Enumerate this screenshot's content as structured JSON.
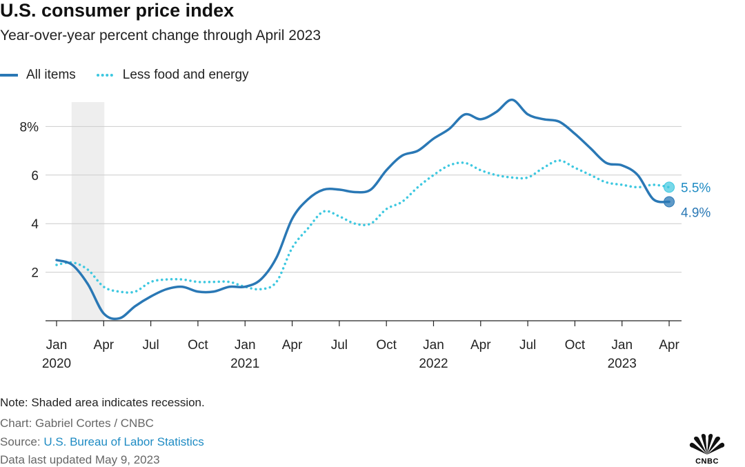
{
  "header": {
    "title": "U.S. consumer price index",
    "subtitle": "Year-over-year percent change through April 2023"
  },
  "footer": {
    "note": "Note: Shaded area indicates recession.",
    "credit": "Chart: Gabriel Cortes / CNBC",
    "source_prefix": "Source: ",
    "source_link": "U.S. Bureau of Labor Statistics",
    "updated": "Data last updated May 9, 2023",
    "logo_text": "CNBC"
  },
  "colors": {
    "all_items": "#2a78b5",
    "core": "#3ec8e0",
    "recession": "#eeeeee",
    "grid": "#cccccc",
    "link": "#1e8bc3"
  },
  "chart_data": {
    "type": "line",
    "title": "U.S. consumer price index",
    "subtitle": "Year-over-year percent change through April 2023",
    "xlabel": "",
    "ylabel": "",
    "ylim": [
      0,
      9
    ],
    "y_ticks": [
      {
        "value": 2,
        "label": "2"
      },
      {
        "value": 4,
        "label": "4"
      },
      {
        "value": 6,
        "label": "6"
      },
      {
        "value": 8,
        "label": "8%"
      }
    ],
    "x_ticks": [
      {
        "month": 0,
        "label": "Jan",
        "year": "2020"
      },
      {
        "month": 3,
        "label": "Apr",
        "year": ""
      },
      {
        "month": 6,
        "label": "Jul",
        "year": ""
      },
      {
        "month": 9,
        "label": "Oct",
        "year": ""
      },
      {
        "month": 12,
        "label": "Jan",
        "year": "2021"
      },
      {
        "month": 15,
        "label": "Apr",
        "year": ""
      },
      {
        "month": 18,
        "label": "Jul",
        "year": ""
      },
      {
        "month": 21,
        "label": "Oct",
        "year": ""
      },
      {
        "month": 24,
        "label": "Jan",
        "year": "2022"
      },
      {
        "month": 27,
        "label": "Apr",
        "year": ""
      },
      {
        "month": 30,
        "label": "Jul",
        "year": ""
      },
      {
        "month": 33,
        "label": "Oct",
        "year": ""
      },
      {
        "month": 36,
        "label": "Jan",
        "year": "2023"
      },
      {
        "month": 39,
        "label": "Apr",
        "year": ""
      }
    ],
    "x_dates": [
      "2020-01",
      "2020-02",
      "2020-03",
      "2020-04",
      "2020-05",
      "2020-06",
      "2020-07",
      "2020-08",
      "2020-09",
      "2020-10",
      "2020-11",
      "2020-12",
      "2021-01",
      "2021-02",
      "2021-03",
      "2021-04",
      "2021-05",
      "2021-06",
      "2021-07",
      "2021-08",
      "2021-09",
      "2021-10",
      "2021-11",
      "2021-12",
      "2022-01",
      "2022-02",
      "2022-03",
      "2022-04",
      "2022-05",
      "2022-06",
      "2022-07",
      "2022-08",
      "2022-09",
      "2022-10",
      "2022-11",
      "2022-12",
      "2023-01",
      "2023-02",
      "2023-03",
      "2023-04"
    ],
    "recession": {
      "start": "2020-02",
      "end": "2020-04"
    },
    "legend_position": "top-left",
    "grid": true,
    "series": [
      {
        "name": "All items",
        "style": "solid",
        "values": [
          2.5,
          2.3,
          1.5,
          0.3,
          0.1,
          0.6,
          1.0,
          1.3,
          1.4,
          1.2,
          1.2,
          1.4,
          1.4,
          1.7,
          2.6,
          4.2,
          5.0,
          5.4,
          5.4,
          5.3,
          5.4,
          6.2,
          6.8,
          7.0,
          7.5,
          7.9,
          8.5,
          8.3,
          8.6,
          9.1,
          8.5,
          8.3,
          8.2,
          7.7,
          7.1,
          6.5,
          6.4,
          6.0,
          5.0,
          4.9
        ],
        "end_label": "4.9%"
      },
      {
        "name": "Less food and energy",
        "style": "dotted",
        "values": [
          2.3,
          2.4,
          2.1,
          1.4,
          1.2,
          1.2,
          1.6,
          1.7,
          1.7,
          1.6,
          1.6,
          1.6,
          1.4,
          1.3,
          1.6,
          3.0,
          3.8,
          4.5,
          4.3,
          4.0,
          4.0,
          4.6,
          4.9,
          5.5,
          6.0,
          6.4,
          6.5,
          6.2,
          6.0,
          5.9,
          5.9,
          6.3,
          6.6,
          6.3,
          6.0,
          5.7,
          5.6,
          5.5,
          5.6,
          5.5
        ],
        "end_label": "5.5%"
      }
    ]
  }
}
